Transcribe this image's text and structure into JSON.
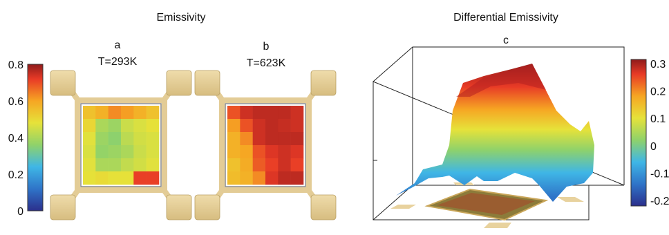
{
  "titles": {
    "left": "Emissivity",
    "right": "Differential Emissivity"
  },
  "panels": {
    "a": {
      "letter": "a",
      "temp": "T=293K"
    },
    "b": {
      "letter": "b",
      "temp": "T=623K"
    },
    "c": {
      "letter": "c"
    }
  },
  "colors": {
    "frame": "#e3cc96",
    "frame_edge": "#b89f62",
    "jet": [
      "#2b2f8c",
      "#2f74c8",
      "#3fb6e6",
      "#8fd26a",
      "#e6e23a",
      "#f6a623",
      "#e83a26",
      "#8e1b1b"
    ]
  },
  "chart_data": [
    {
      "type": "heatmap",
      "panel": "a",
      "title": "T=293K",
      "rows": 6,
      "cols": 6,
      "values": [
        [
          0.52,
          0.55,
          0.6,
          0.58,
          0.55,
          0.52
        ],
        [
          0.48,
          0.38,
          0.36,
          0.42,
          0.44,
          0.46
        ],
        [
          0.45,
          0.36,
          0.34,
          0.4,
          0.43,
          0.44
        ],
        [
          0.44,
          0.35,
          0.36,
          0.38,
          0.42,
          0.44
        ],
        [
          0.45,
          0.38,
          0.38,
          0.41,
          0.43,
          0.45
        ],
        [
          0.46,
          0.47,
          0.46,
          0.46,
          0.68,
          0.68
        ]
      ]
    },
    {
      "type": "heatmap",
      "panel": "b",
      "title": "T=623K",
      "rows": 6,
      "cols": 6,
      "values": [
        [
          0.66,
          0.72,
          0.74,
          0.74,
          0.74,
          0.72
        ],
        [
          0.58,
          0.66,
          0.72,
          0.74,
          0.73,
          0.72
        ],
        [
          0.55,
          0.6,
          0.72,
          0.74,
          0.74,
          0.74
        ],
        [
          0.55,
          0.57,
          0.66,
          0.7,
          0.72,
          0.7
        ],
        [
          0.52,
          0.56,
          0.65,
          0.68,
          0.72,
          0.68
        ],
        [
          0.53,
          0.55,
          0.6,
          0.7,
          0.74,
          0.74
        ]
      ]
    },
    {
      "type": "surface",
      "panel": "c",
      "title": "c",
      "colorbar": {
        "range": [
          -0.2,
          0.3
        ],
        "ticks": [
          "0.3",
          "0.2",
          "0.1",
          "0",
          "-0.1",
          "-0.2"
        ]
      }
    },
    {
      "type": "colorbar",
      "panel": "a-b",
      "range": [
        0,
        0.8
      ],
      "ticks": [
        "0.8",
        "0.6",
        "0.4",
        "0.2",
        "0"
      ]
    }
  ]
}
